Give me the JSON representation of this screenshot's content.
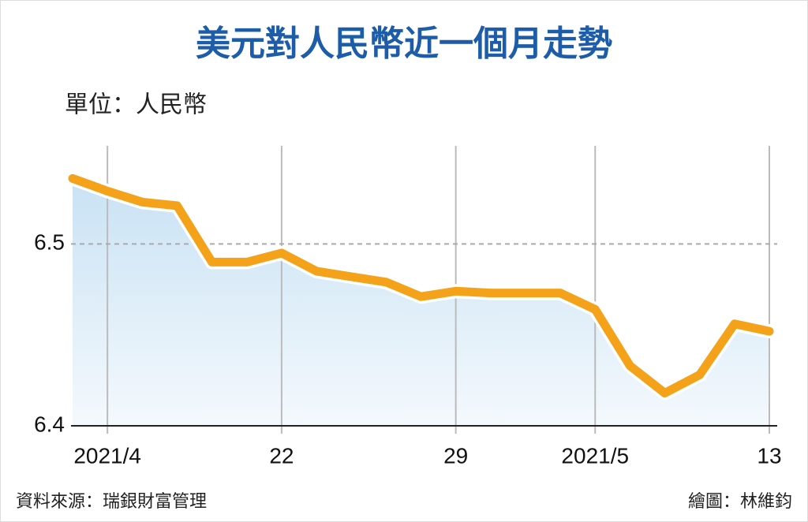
{
  "chart_data": {
    "type": "line",
    "title": "美元對人民幣近一個月走勢",
    "subtitle": "單位：人民幣",
    "source": "資料來源：瑞銀財富管理",
    "credit": "繪圖：林維鈞",
    "categories": [
      null,
      "2021/4",
      null,
      null,
      null,
      null,
      "22",
      null,
      null,
      null,
      null,
      "29",
      null,
      null,
      null,
      "2021/5",
      null,
      null,
      null,
      null,
      "13"
    ],
    "series": [
      {
        "color": "#f5a21b",
        "values": [
          6.536,
          6.529,
          6.523,
          6.521,
          6.49,
          6.49,
          6.495,
          6.485,
          6.482,
          6.479,
          6.471,
          6.474,
          6.473,
          6.473,
          6.473,
          6.464,
          6.433,
          6.418,
          6.428,
          6.456,
          6.452
        ]
      }
    ],
    "ylim": [
      6.4,
      6.55
    ],
    "yticks": [
      6.4,
      6.5
    ],
    "grid": true
  }
}
